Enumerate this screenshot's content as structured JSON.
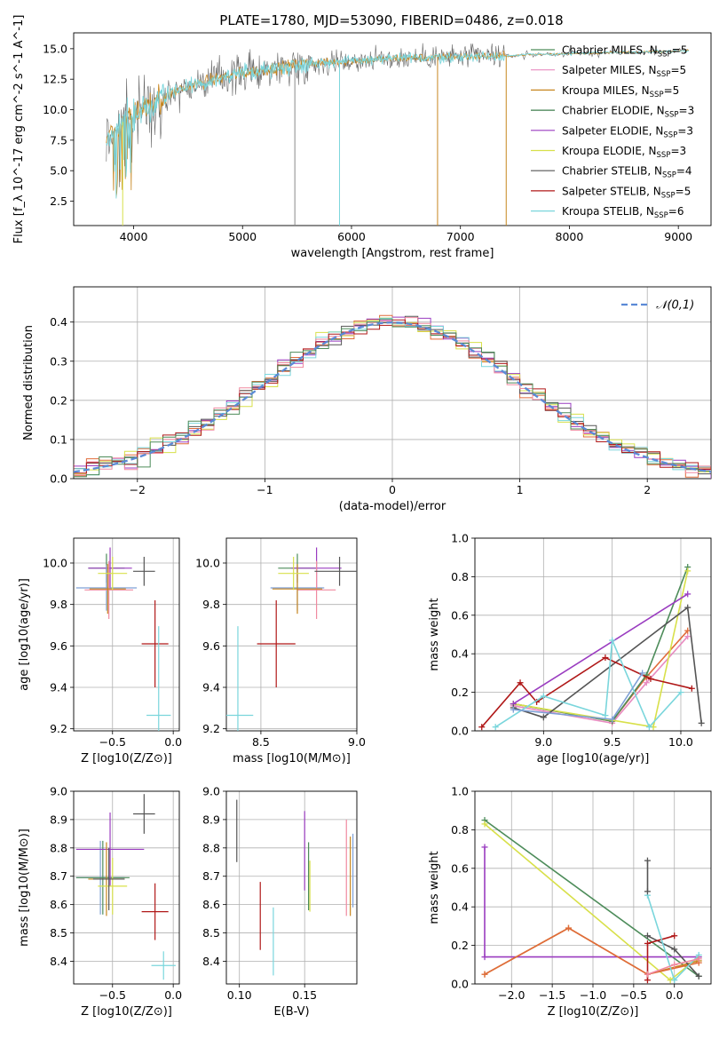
{
  "figure": {
    "title": "PLATE=1780, MJD=53090, FIBERID=0486, z=0.018"
  },
  "chart_data": [
    {
      "id": "spectrum",
      "type": "line",
      "title": "PLATE=1780, MJD=53090, FIBERID=0486, z=0.018",
      "xlabel": "wavelength [Angstrom, rest frame]",
      "ylabel": "Flux [f_λ 10^-17 erg cm^-2 s^-1 A^-1]",
      "xlim": [
        3450,
        9300
      ],
      "ylim": [
        0.5,
        16.3
      ],
      "xticks": [
        "4000",
        "5000",
        "6000",
        "7000",
        "8000",
        "9000"
      ],
      "yticks": [
        "2.5",
        "5.0",
        "7.5",
        "10.0",
        "12.5",
        "15.0"
      ],
      "grid": false,
      "legend_position": "top-right",
      "legend": [
        {
          "name": "Chabrier MILES, N_SSP=5",
          "color": "#4d8c5a"
        },
        {
          "name": "Salpeter MILES, N_SSP=5",
          "color": "#e88bc0"
        },
        {
          "name": "Kroupa MILES, N_SSP=5",
          "color": "#c7861f"
        },
        {
          "name": "Chabrier ELODIE, N_SSP=3",
          "color": "#3f7f4c"
        },
        {
          "name": "Salpeter ELODIE, N_SSP=3",
          "color": "#9a3cc0"
        },
        {
          "name": "Kroupa ELODIE, N_SSP=3",
          "color": "#d8e04a"
        },
        {
          "name": "Chabrier STELIB, N_SSP=4",
          "color": "#555555"
        },
        {
          "name": "Salpeter STELIB, N_SSP=5",
          "color": "#b01818"
        },
        {
          "name": "Kroupa STELIB, N_SSP=6",
          "color": "#7ad6dc"
        }
      ],
      "continuum": {
        "x": [
          3750,
          3900,
          4100,
          4400,
          4700,
          5000,
          5300,
          5600,
          6000,
          6400,
          6800,
          7200,
          7400,
          7600,
          8000,
          8500,
          9000,
          9300
        ],
        "y": [
          7.5,
          9.0,
          10.2,
          11.6,
          12.4,
          13.0,
          13.4,
          13.8,
          14.0,
          14.2,
          14.3,
          14.4,
          14.4,
          14.5,
          14.6,
          14.7,
          14.8,
          14.8
        ]
      },
      "spikes": [
        {
          "x": 3900,
          "y_min": 0.5,
          "color": "#d8e04a"
        },
        {
          "x": 5480,
          "y_min": 0.5,
          "color": "#888888"
        },
        {
          "x": 5890,
          "y_min": 0.5,
          "color": "#7ad6dc"
        },
        {
          "x": 6790,
          "y_min": 0.5,
          "color": "#c7861f"
        },
        {
          "x": 7420,
          "y_min": 0.5,
          "color": "#c7861f"
        }
      ]
    },
    {
      "id": "residuals",
      "type": "step",
      "xlabel": "(data-model)/error",
      "ylabel": "Normed distribution",
      "xlim": [
        -2.5,
        2.5
      ],
      "ylim": [
        0,
        0.49
      ],
      "xticks": [
        -2,
        -1,
        0,
        1,
        2
      ],
      "yticks": [
        0.0,
        0.1,
        0.2,
        0.3,
        0.4
      ],
      "grid": true,
      "legend_position": "top-right",
      "legend": [
        {
          "name": "𝒩(0,1)",
          "color": "#5b8ad6",
          "style": "dashed"
        }
      ],
      "bin_width": 0.1,
      "series_colors": [
        "#e06b3a",
        "#9a3cc0",
        "#d8e04a",
        "#555555",
        "#7ad6dc",
        "#f08aa0",
        "#b01818",
        "#4d8c5a"
      ]
    },
    {
      "id": "age-vs-Z",
      "type": "errorbar",
      "xlabel": "Z [log10(Z/Z⊙)]",
      "ylabel": "age  [log10(age/yr)]",
      "xlim": [
        -0.82,
        0.05
      ],
      "ylim": [
        9.19,
        10.12
      ],
      "xticks": [
        -0.5,
        0.0
      ],
      "yticks": [
        9.2,
        9.4,
        9.6,
        9.8,
        10.0
      ],
      "grid": true,
      "points": [
        {
          "x": -0.55,
          "y": 9.975,
          "xerr": 0.15,
          "yerr": 0.07,
          "color": "#4d8c5a"
        },
        {
          "x": -0.52,
          "y": 9.975,
          "xerr": 0.18,
          "yerr": 0.1,
          "color": "#9a3cc0"
        },
        {
          "x": -0.55,
          "y": 9.88,
          "xerr": 0.25,
          "yerr": 0.11,
          "color": "#7fa0d6"
        },
        {
          "x": -0.53,
          "y": 9.87,
          "xerr": 0.2,
          "yerr": 0.14,
          "color": "#f08aa0"
        },
        {
          "x": -0.54,
          "y": 9.875,
          "xerr": 0.15,
          "yerr": 0.12,
          "color": "#c7861f"
        },
        {
          "x": -0.5,
          "y": 9.95,
          "xerr": 0.12,
          "yerr": 0.08,
          "color": "#d8e04a"
        },
        {
          "x": -0.24,
          "y": 9.96,
          "xerr": 0.09,
          "yerr": 0.07,
          "color": "#555555"
        },
        {
          "x": -0.15,
          "y": 9.61,
          "xerr": 0.11,
          "yerr": 0.21,
          "color": "#b01818"
        },
        {
          "x": -0.12,
          "y": 9.265,
          "xerr": 0.1,
          "yerr": 0.43,
          "color": "#7ad6dc"
        }
      ]
    },
    {
      "id": "age-vs-mass",
      "type": "errorbar",
      "xlabel": "mass [log10(M/M⊙)]",
      "ylabel": "",
      "xlim": [
        8.32,
        9.0
      ],
      "ylim": [
        9.19,
        10.12
      ],
      "xticks": [
        8.5,
        9.0
      ],
      "yticks": [
        9.2,
        9.4,
        9.6,
        9.8,
        10.0
      ],
      "grid": true,
      "points": [
        {
          "x": 8.69,
          "y": 9.975,
          "xerr": 0.1,
          "yerr": 0.07,
          "color": "#4d8c5a"
        },
        {
          "x": 8.79,
          "y": 9.975,
          "xerr": 0.13,
          "yerr": 0.1,
          "color": "#9a3cc0"
        },
        {
          "x": 8.69,
          "y": 9.88,
          "xerr": 0.14,
          "yerr": 0.11,
          "color": "#7fa0d6"
        },
        {
          "x": 8.79,
          "y": 9.87,
          "xerr": 0.1,
          "yerr": 0.14,
          "color": "#f08aa0"
        },
        {
          "x": 8.69,
          "y": 9.875,
          "xerr": 0.13,
          "yerr": 0.12,
          "color": "#c7861f"
        },
        {
          "x": 8.67,
          "y": 9.95,
          "xerr": 0.08,
          "yerr": 0.08,
          "color": "#d8e04a"
        },
        {
          "x": 8.91,
          "y": 9.96,
          "xerr": 0.13,
          "yerr": 0.07,
          "color": "#555555"
        },
        {
          "x": 8.58,
          "y": 9.61,
          "xerr": 0.1,
          "yerr": 0.21,
          "color": "#b01818"
        },
        {
          "x": 8.38,
          "y": 9.265,
          "xerr": 0.08,
          "yerr": 0.43,
          "color": "#7ad6dc"
        }
      ]
    },
    {
      "id": "weight-vs-age",
      "type": "line",
      "xlabel": "age  [log10(age/yr)]",
      "ylabel": "mass weight",
      "xlim": [
        8.5,
        10.22
      ],
      "ylim": [
        0.0,
        1.0
      ],
      "xticks": [
        9.0,
        9.5,
        10.0
      ],
      "yticks": [
        0.0,
        0.2,
        0.4,
        0.6,
        0.8,
        1.0
      ],
      "grid": true,
      "series": [
        {
          "color": "#e88bc0",
          "x": [
            8.78,
            9.5,
            9.75,
            10.05
          ],
          "y": [
            0.13,
            0.04,
            0.25,
            0.49
          ]
        },
        {
          "color": "#e06b3a",
          "x": [
            8.78,
            9.5,
            9.75,
            10.05
          ],
          "y": [
            0.14,
            0.05,
            0.28,
            0.52
          ]
        },
        {
          "color": "#4d8c5a",
          "x": [
            8.78,
            9.5,
            9.75,
            10.05
          ],
          "y": [
            0.14,
            0.05,
            0.29,
            0.85
          ]
        },
        {
          "color": "#d8e04a",
          "x": [
            8.78,
            9.8,
            10.05
          ],
          "y": [
            0.14,
            0.02,
            0.83
          ]
        },
        {
          "color": "#9a3cc0",
          "x": [
            8.78,
            10.05
          ],
          "y": [
            0.14,
            0.71
          ]
        },
        {
          "color": "#555555",
          "x": [
            8.78,
            9.0,
            10.05,
            10.15
          ],
          "y": [
            0.12,
            0.07,
            0.64,
            0.04
          ]
        },
        {
          "color": "#b01818",
          "x": [
            8.55,
            8.83,
            8.95,
            9.45,
            9.78,
            10.08
          ],
          "y": [
            0.02,
            0.25,
            0.15,
            0.38,
            0.27,
            0.22
          ]
        },
        {
          "color": "#7ad6dc",
          "x": [
            8.65,
            9.0,
            9.45,
            9.5,
            9.77,
            10.0
          ],
          "y": [
            0.02,
            0.18,
            0.08,
            0.47,
            0.02,
            0.2
          ]
        },
        {
          "color": "#7fa0d6",
          "x": [
            8.78,
            9.5,
            9.72
          ],
          "y": [
            0.11,
            0.06,
            0.3
          ]
        }
      ]
    },
    {
      "id": "mass-vs-Z",
      "type": "errorbar",
      "xlabel": "Z [log10(Z/Z⊙)]",
      "ylabel": "mass [log10(M/M⊙)]",
      "xlim": [
        -0.82,
        0.05
      ],
      "ylim": [
        8.32,
        9.0
      ],
      "xticks": [
        -0.5,
        0.0
      ],
      "yticks": [
        8.4,
        8.5,
        8.6,
        8.7,
        8.8,
        8.9,
        9.0
      ],
      "grid": true,
      "points": [
        {
          "x": -0.6,
          "y": 8.695,
          "xerr": 0.2,
          "yerr": 0.13,
          "color": "#7fa0d6"
        },
        {
          "x": -0.58,
          "y": 8.695,
          "xerr": 0.22,
          "yerr": 0.13,
          "color": "#4d8c5a"
        },
        {
          "x": -0.52,
          "y": 8.795,
          "xerr": 0.28,
          "yerr": 0.13,
          "color": "#9a3cc0"
        },
        {
          "x": -0.55,
          "y": 8.69,
          "xerr": 0.15,
          "yerr": 0.13,
          "color": "#c7861f"
        },
        {
          "x": -0.5,
          "y": 8.665,
          "xerr": 0.12,
          "yerr": 0.1,
          "color": "#d8e04a"
        },
        {
          "x": -0.53,
          "y": 8.69,
          "xerr": 0.13,
          "yerr": 0.11,
          "color": "#555555"
        },
        {
          "x": -0.24,
          "y": 8.92,
          "xerr": 0.09,
          "yerr": 0.07,
          "color": "#555555"
        },
        {
          "x": -0.15,
          "y": 8.575,
          "xerr": 0.11,
          "yerr": 0.1,
          "color": "#b01818"
        },
        {
          "x": -0.08,
          "y": 8.385,
          "xerr": 0.1,
          "yerr": 0.05,
          "color": "#7ad6dc"
        }
      ]
    },
    {
      "id": "mass-vs-ebv",
      "type": "errorbar",
      "xlabel": "E(B-V)",
      "ylabel": "",
      "xlim": [
        0.09,
        0.19
      ],
      "ylim": [
        8.32,
        9.0
      ],
      "xticks": [
        0.1,
        0.15
      ],
      "yticks": [
        8.4,
        8.5,
        8.6,
        8.7,
        8.8,
        8.9,
        9.0
      ],
      "grid": true,
      "points": [
        {
          "x": 0.098,
          "y": 8.86,
          "xerr": 0.0,
          "yerr": 0.11,
          "color": "#555555"
        },
        {
          "x": 0.116,
          "y": 8.56,
          "xerr": 0.0,
          "yerr": 0.12,
          "color": "#b01818"
        },
        {
          "x": 0.126,
          "y": 8.47,
          "xerr": 0.0,
          "yerr": 0.12,
          "color": "#7ad6dc"
        },
        {
          "x": 0.15,
          "y": 8.79,
          "xerr": 0.0,
          "yerr": 0.14,
          "color": "#9a3cc0"
        },
        {
          "x": 0.153,
          "y": 8.7,
          "xerr": 0.0,
          "yerr": 0.12,
          "color": "#4d8c5a"
        },
        {
          "x": 0.154,
          "y": 8.665,
          "xerr": 0.0,
          "yerr": 0.09,
          "color": "#d8e04a"
        },
        {
          "x": 0.182,
          "y": 8.73,
          "xerr": 0.0,
          "yerr": 0.17,
          "color": "#f08aa0"
        },
        {
          "x": 0.185,
          "y": 8.7,
          "xerr": 0.0,
          "yerr": 0.14,
          "color": "#c7861f"
        },
        {
          "x": 0.187,
          "y": 8.72,
          "xerr": 0.0,
          "yerr": 0.13,
          "color": "#7fa0d6"
        }
      ]
    },
    {
      "id": "weight-vs-Z",
      "type": "line",
      "xlabel": "Z [log10(Z/Z⊙)]",
      "ylabel": "mass weight",
      "xlim": [
        -2.45,
        0.45
      ],
      "ylim": [
        0.0,
        1.0
      ],
      "xticks": [
        -2.0,
        -1.5,
        -1.0,
        -0.5,
        0.0
      ],
      "yticks": [
        0.0,
        0.2,
        0.4,
        0.6,
        0.8,
        1.0
      ],
      "grid": true,
      "series": [
        {
          "color": "#4d8c5a",
          "x": [
            -2.33,
            0.3
          ],
          "y": [
            0.85,
            0.04
          ]
        },
        {
          "color": "#d8e04a",
          "x": [
            -2.33,
            -0.05,
            0.3
          ],
          "y": [
            0.83,
            0.02,
            0.14
          ]
        },
        {
          "color": "#9a3cc0",
          "x": [
            -2.33,
            -2.33,
            0.3
          ],
          "y": [
            0.71,
            0.14,
            0.14
          ]
        },
        {
          "color": "#c7861f",
          "x": [
            -2.33,
            -1.3,
            -0.33,
            0.3
          ],
          "y": [
            0.05,
            0.29,
            0.05,
            0.12
          ]
        },
        {
          "color": "#e06b3a",
          "x": [
            -2.33,
            -1.3,
            -0.33,
            0.3
          ],
          "y": [
            0.05,
            0.29,
            0.05,
            0.11
          ]
        },
        {
          "color": "#555555",
          "x": [
            -0.33,
            0.0,
            0.3
          ],
          "y": [
            0.25,
            0.18,
            0.04
          ]
        },
        {
          "color": "#b01818",
          "x": [
            -0.33,
            -0.33,
            0.0
          ],
          "y": [
            0.02,
            0.21,
            0.25
          ]
        },
        {
          "color": "#7ad6dc",
          "x": [
            -0.33,
            0.0,
            0.3
          ],
          "y": [
            0.46,
            0.02,
            0.15
          ]
        },
        {
          "color": "#f08aa0",
          "x": [
            -0.33,
            0.0,
            0.3
          ],
          "y": [
            0.05,
            0.1,
            0.13
          ]
        },
        {
          "color": "#555555",
          "x": [
            -0.33,
            -0.33
          ],
          "y": [
            0.64,
            0.48
          ]
        }
      ]
    }
  ]
}
